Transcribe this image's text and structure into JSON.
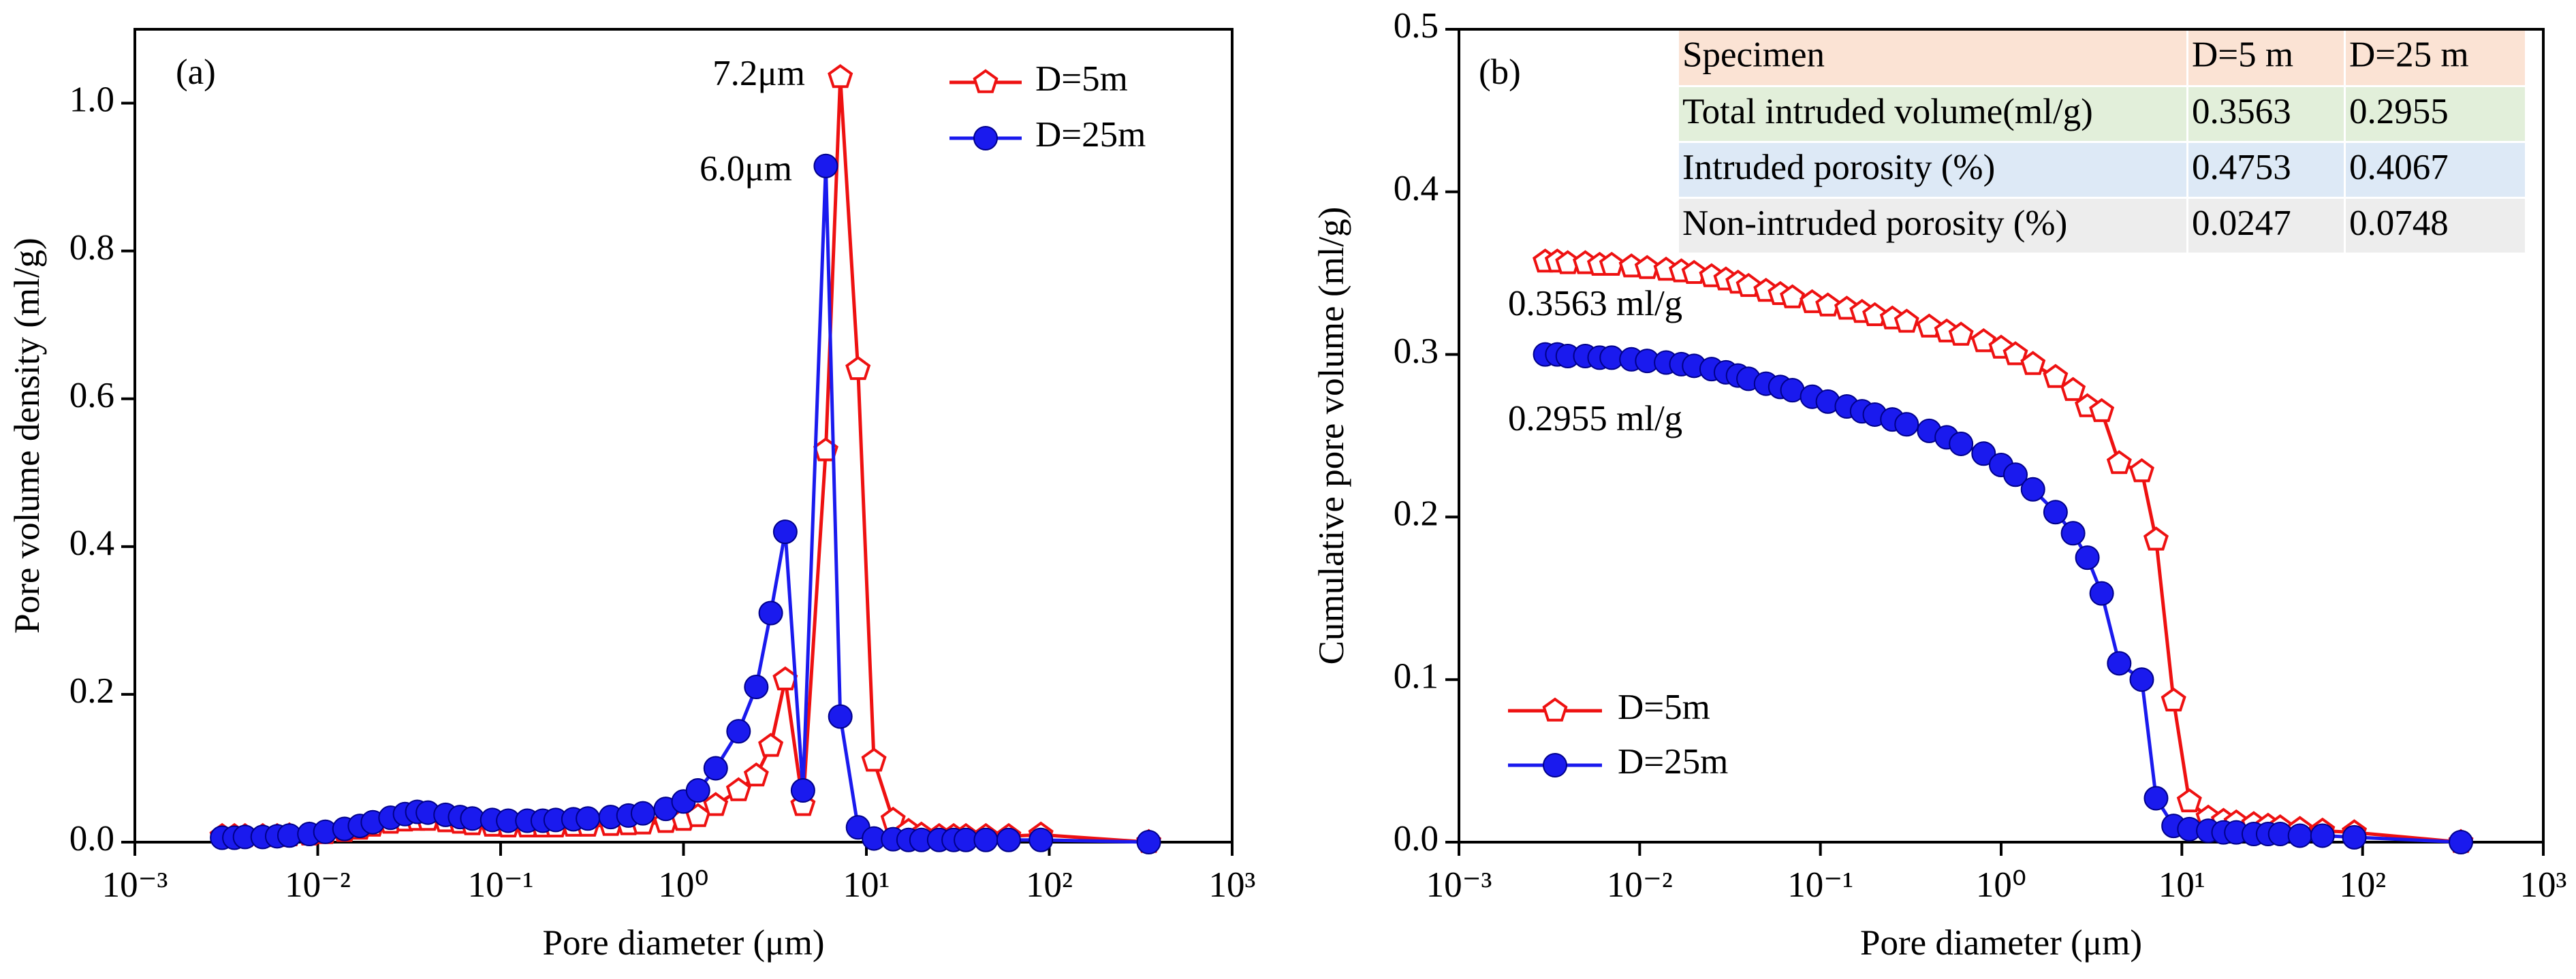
{
  "chart_data": [
    {
      "type": "line",
      "panel_label": "(a)",
      "xlabel": "Pore diameter (μm)",
      "ylabel": "Pore volume density (ml/g)",
      "xscale": "log",
      "xlim": [
        0.001,
        1000
      ],
      "xticks": [
        {
          "value": 0.001,
          "label": "10⁻³"
        },
        {
          "value": 0.01,
          "label": "10⁻²"
        },
        {
          "value": 0.1,
          "label": "10⁻¹"
        },
        {
          "value": 1,
          "label": "10⁰"
        },
        {
          "value": 10,
          "label": "10¹"
        },
        {
          "value": 100,
          "label": "10²"
        },
        {
          "value": 1000,
          "label": "10³"
        }
      ],
      "ylim": [
        0,
        1.1
      ],
      "yticks": [
        {
          "value": 0,
          "label": "0.0"
        },
        0.2,
        0.4,
        0.6,
        0.8,
        {
          "value": 1,
          "label": "1.0"
        }
      ],
      "legend": "upper right",
      "annotations": [
        {
          "text": "7.2μm",
          "color": "#ee1111"
        },
        {
          "text": "6.0μm",
          "color": "#1a1aee"
        }
      ],
      "x": [
        0.003,
        0.0035,
        0.004,
        0.005,
        0.006,
        0.007,
        0.009,
        0.011,
        0.014,
        0.017,
        0.02,
        0.025,
        0.03,
        0.035,
        0.04,
        0.05,
        0.06,
        0.07,
        0.09,
        0.11,
        0.14,
        0.17,
        0.2,
        0.25,
        0.3,
        0.4,
        0.5,
        0.6,
        0.8,
        1.0,
        1.2,
        1.5,
        2.0,
        2.5,
        3.0,
        3.6,
        4.5,
        6.0,
        7.2,
        9.0,
        11,
        14,
        17,
        20,
        25,
        30,
        35,
        45,
        60,
        90,
        350
      ],
      "series": [
        {
          "name": "D=5m",
          "color": "#ee1111",
          "marker": "pentagon",
          "values": [
            0.008,
            0.008,
            0.008,
            0.008,
            0.008,
            0.009,
            0.01,
            0.012,
            0.015,
            0.018,
            0.022,
            0.026,
            0.029,
            0.03,
            0.03,
            0.028,
            0.026,
            0.024,
            0.022,
            0.021,
            0.021,
            0.021,
            0.021,
            0.022,
            0.022,
            0.023,
            0.024,
            0.025,
            0.027,
            0.03,
            0.035,
            0.05,
            0.07,
            0.09,
            0.13,
            0.22,
            0.05,
            0.53,
            1.035,
            0.64,
            0.11,
            0.03,
            0.015,
            0.01,
            0.008,
            0.008,
            0.008,
            0.008,
            0.008,
            0.01,
            0.0
          ]
        },
        {
          "name": "D=25m",
          "color": "#1a1aee",
          "marker": "circle",
          "values": [
            0.006,
            0.006,
            0.007,
            0.007,
            0.008,
            0.009,
            0.011,
            0.014,
            0.018,
            0.022,
            0.027,
            0.033,
            0.038,
            0.041,
            0.04,
            0.037,
            0.034,
            0.032,
            0.03,
            0.029,
            0.029,
            0.029,
            0.03,
            0.031,
            0.032,
            0.034,
            0.036,
            0.039,
            0.045,
            0.055,
            0.07,
            0.1,
            0.15,
            0.21,
            0.31,
            0.42,
            0.07,
            0.915,
            0.17,
            0.02,
            0.005,
            0.004,
            0.003,
            0.003,
            0.003,
            0.003,
            0.003,
            0.003,
            0.003,
            0.003,
            0.0
          ]
        }
      ]
    },
    {
      "type": "line",
      "panel_label": "(b)",
      "xlabel": "Pore diameter (μm)",
      "ylabel": "Cumulative pore volume (ml/g)",
      "xscale": "log",
      "xlim": [
        0.001,
        1000
      ],
      "xticks": [
        {
          "value": 0.001,
          "label": "10⁻³"
        },
        {
          "value": 0.01,
          "label": "10⁻²"
        },
        {
          "value": 0.1,
          "label": "10⁻¹"
        },
        {
          "value": 1,
          "label": "10⁰"
        },
        {
          "value": 10,
          "label": "10¹"
        },
        {
          "value": 100,
          "label": "10²"
        },
        {
          "value": 1000,
          "label": "10³"
        }
      ],
      "ylim": [
        0,
        0.5
      ],
      "yticks": [
        {
          "value": 0,
          "label": "0.0"
        },
        0.1,
        0.2,
        0.3,
        0.4,
        0.5
      ],
      "legend": "lower left",
      "annotations": [
        {
          "text": "0.3563 ml/g",
          "color": "#ee1111"
        },
        {
          "text": "0.2955 ml/g",
          "color": "#1a1aee"
        }
      ],
      "table": {
        "header": [
          "Specimen",
          "D=5 m",
          "D=25 m"
        ],
        "rows": [
          [
            "Total intruded volume(ml/g)",
            "0.3563",
            "0.2955"
          ],
          [
            "Intruded porosity (%)",
            "0.4753",
            "0.4067"
          ],
          [
            "Non-intruded porosity (%)",
            "0.0247",
            "0.0748"
          ]
        ]
      },
      "x": [
        0.003,
        0.0035,
        0.004,
        0.005,
        0.006,
        0.007,
        0.009,
        0.011,
        0.014,
        0.017,
        0.02,
        0.025,
        0.03,
        0.035,
        0.04,
        0.05,
        0.06,
        0.07,
        0.09,
        0.11,
        0.14,
        0.17,
        0.2,
        0.25,
        0.3,
        0.4,
        0.5,
        0.6,
        0.8,
        1.0,
        1.2,
        1.5,
        2.0,
        2.5,
        3.0,
        3.6,
        4.5,
        6.0,
        7.2,
        9.0,
        11,
        14,
        17,
        20,
        25,
        30,
        35,
        45,
        60,
        90,
        350
      ],
      "series": [
        {
          "name": "D=5m",
          "color": "#ee1111",
          "marker": "pentagon",
          "values": [
            0.357,
            0.357,
            0.356,
            0.356,
            0.355,
            0.355,
            0.354,
            0.353,
            0.352,
            0.351,
            0.35,
            0.348,
            0.346,
            0.344,
            0.342,
            0.339,
            0.337,
            0.335,
            0.332,
            0.33,
            0.328,
            0.326,
            0.324,
            0.322,
            0.32,
            0.317,
            0.314,
            0.312,
            0.308,
            0.304,
            0.3,
            0.294,
            0.286,
            0.278,
            0.268,
            0.265,
            0.233,
            0.228,
            0.186,
            0.087,
            0.025,
            0.015,
            0.013,
            0.012,
            0.011,
            0.01,
            0.009,
            0.008,
            0.007,
            0.006,
            0.0
          ]
        },
        {
          "name": "D=25m",
          "color": "#1a1aee",
          "marker": "circle",
          "values": [
            0.3,
            0.3,
            0.299,
            0.299,
            0.298,
            0.298,
            0.297,
            0.296,
            0.295,
            0.294,
            0.293,
            0.291,
            0.289,
            0.287,
            0.285,
            0.282,
            0.28,
            0.278,
            0.274,
            0.271,
            0.268,
            0.265,
            0.263,
            0.26,
            0.257,
            0.253,
            0.249,
            0.245,
            0.239,
            0.232,
            0.226,
            0.217,
            0.203,
            0.19,
            0.175,
            0.153,
            0.11,
            0.1,
            0.027,
            0.01,
            0.008,
            0.007,
            0.006,
            0.006,
            0.005,
            0.005,
            0.005,
            0.004,
            0.004,
            0.003,
            0.0
          ]
        }
      ]
    }
  ]
}
